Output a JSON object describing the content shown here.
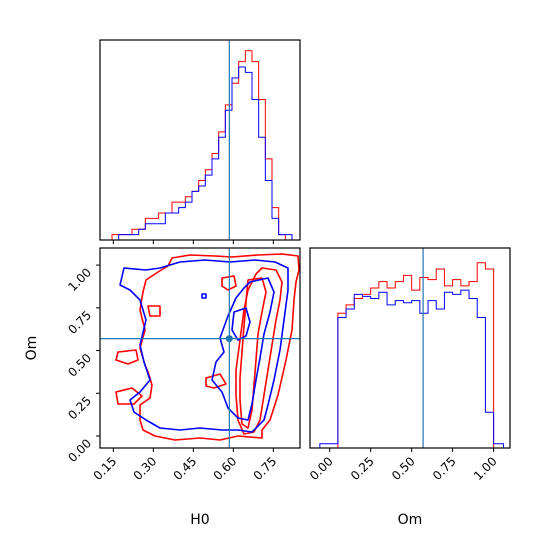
{
  "chart_data": [
    {
      "type": "histogram",
      "panel": "H0 marginal",
      "xlim": [
        0.1,
        0.85
      ],
      "truth_line": 0.585,
      "colors": {
        "run_a": "#ff0000",
        "run_b": "#0000ff",
        "truth": "#1f77b4"
      },
      "series": [
        {
          "edges": [
            0.145,
            0.17,
            0.195,
            0.22,
            0.245,
            0.27,
            0.295,
            0.32,
            0.345,
            0.37,
            0.395,
            0.42,
            0.445,
            0.47,
            0.495,
            0.52,
            0.545,
            0.57,
            0.595,
            0.62,
            0.645,
            0.67,
            0.695,
            0.72,
            0.745,
            0.77,
            0.795,
            0.82
          ],
          "values": [
            1,
            1,
            1,
            2,
            2,
            4,
            4,
            5,
            5,
            7,
            7,
            8,
            9,
            11,
            13,
            16,
            20,
            25,
            29,
            33,
            35,
            33,
            26,
            15,
            6,
            1,
            0
          ]
        },
        {
          "edges": [
            0.145,
            0.17,
            0.195,
            0.22,
            0.245,
            0.27,
            0.295,
            0.32,
            0.345,
            0.37,
            0.395,
            0.42,
            0.445,
            0.47,
            0.495,
            0.52,
            0.545,
            0.57,
            0.595,
            0.62,
            0.645,
            0.67,
            0.695,
            0.72,
            0.745,
            0.77,
            0.795,
            0.82
          ],
          "values": [
            0,
            1,
            1,
            1,
            2,
            3,
            3,
            3,
            5,
            5,
            6,
            7,
            9,
            10,
            12,
            15,
            19,
            24,
            30,
            32,
            31,
            26,
            19,
            11,
            4,
            1,
            1
          ]
        }
      ]
    },
    {
      "type": "contour",
      "panel": "Om vs H0",
      "xlabel": "H0",
      "ylabel": "Om",
      "xlim": [
        0.1,
        0.85
      ],
      "ylim": [
        -0.07,
        1.1
      ],
      "xticks": [
        "0.15",
        "0.30",
        "0.45",
        "0.60",
        "0.75"
      ],
      "yticks": [
        "0.00",
        "0.25",
        "0.50",
        "0.75",
        "1.00"
      ],
      "truth": {
        "x": 0.585,
        "y": 0.57
      }
    },
    {
      "type": "histogram",
      "panel": "Om marginal",
      "xlabel": "Om",
      "xlim": [
        -0.12,
        1.1
      ],
      "xticks": [
        "0.00",
        "0.25",
        "0.50",
        "0.75",
        "1.00"
      ],
      "truth_line": 0.57,
      "series": [
        {
          "edges": [
            -0.06,
            0.0,
            0.05,
            0.1,
            0.15,
            0.2,
            0.25,
            0.3,
            0.35,
            0.4,
            0.45,
            0.5,
            0.55,
            0.6,
            0.65,
            0.7,
            0.75,
            0.8,
            0.85,
            0.9,
            0.95,
            1.0,
            1.06
          ],
          "values": [
            0,
            0,
            64,
            68,
            71,
            73,
            76,
            79,
            76,
            79,
            82,
            75,
            81,
            80,
            85,
            77,
            80,
            77,
            79,
            88,
            85,
            0
          ]
        },
        {
          "edges": [
            -0.06,
            0.0,
            0.05,
            0.1,
            0.15,
            0.2,
            0.25,
            0.3,
            0.35,
            0.4,
            0.45,
            0.5,
            0.55,
            0.6,
            0.65,
            0.7,
            0.75,
            0.8,
            0.85,
            0.9,
            0.95,
            1.0,
            1.06
          ],
          "values": [
            2,
            2,
            62,
            66,
            73,
            72,
            71,
            74,
            68,
            70,
            69,
            70,
            64,
            70,
            66,
            74,
            73,
            75,
            71,
            62,
            17,
            2
          ]
        }
      ]
    }
  ]
}
